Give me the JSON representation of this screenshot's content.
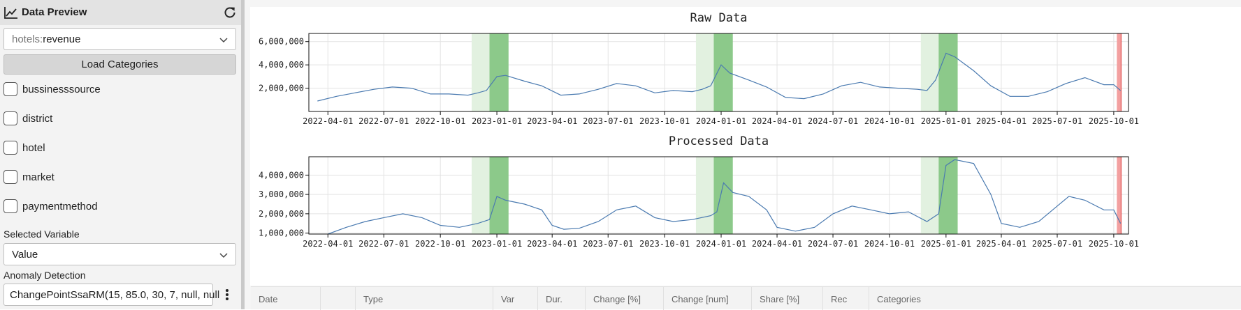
{
  "sidebar": {
    "header": {
      "title": "Data Preview",
      "icon": "line-chart-icon",
      "refresh_icon": "refresh-icon"
    },
    "source_select": {
      "prefix": "hotels:",
      "value": "revenue"
    },
    "load_button": "Load Categories",
    "categories": [
      {
        "label": "bussinesssource",
        "checked": false
      },
      {
        "label": "district",
        "checked": false
      },
      {
        "label": "hotel",
        "checked": false
      },
      {
        "label": "market",
        "checked": false
      },
      {
        "label": "paymentmethod",
        "checked": false
      }
    ],
    "selected_variable_label": "Selected Variable",
    "variable_select": {
      "value": "Value"
    },
    "anomaly_label": "Anomaly Detection",
    "anomaly_value": "ChangePointSsaRM(15, 85.0, 30, 7, null, null"
  },
  "table": {
    "columns": [
      "Date",
      "",
      "Type",
      "Var",
      "Dur.",
      "Change [%]",
      "Change [num]",
      "Share [%]",
      "Rec",
      "Categories"
    ]
  },
  "colors": {
    "line": "#4a7ab0",
    "highlight_light": "#e2f1e0",
    "highlight_dark": "#8cc98a",
    "anomaly_red": "#f3a0a0",
    "anomaly_red_line": "#e05050"
  },
  "chart_data": [
    {
      "type": "line",
      "title": "Raw Data",
      "xlabel": "",
      "ylabel": "",
      "x_ticks": [
        "2022-04-01",
        "2022-07-01",
        "2022-10-01",
        "2023-01-01",
        "2023-04-01",
        "2023-07-01",
        "2023-10-01",
        "2024-01-01",
        "2024-04-01",
        "2024-07-01",
        "2024-10-01",
        "2025-01-01",
        "2025-04-01",
        "2025-07-01",
        "2025-10-01"
      ],
      "y_ticks": [
        "2,000,000",
        "4,000,000",
        "6,000,000"
      ],
      "xlim": [
        "2022-03-01",
        "2025-10-25"
      ],
      "ylim": [
        0,
        6700000
      ],
      "grid": true,
      "series": [
        {
          "x": [
            "2022-03-15",
            "2022-04-15",
            "2022-05-15",
            "2022-06-15",
            "2022-07-15",
            "2022-08-15",
            "2022-09-15",
            "2022-10-15",
            "2022-11-15",
            "2022-12-01",
            "2022-12-15",
            "2023-01-01",
            "2023-01-15",
            "2023-02-15",
            "2023-03-15",
            "2023-04-15",
            "2023-05-15",
            "2023-06-15",
            "2023-07-15",
            "2023-08-15",
            "2023-09-15",
            "2023-10-15",
            "2023-11-15",
            "2023-12-01",
            "2023-12-15",
            "2024-01-01",
            "2024-01-15",
            "2024-02-15",
            "2024-03-15",
            "2024-04-15",
            "2024-05-15",
            "2024-06-15",
            "2024-07-15",
            "2024-08-15",
            "2024-09-15",
            "2024-10-15",
            "2024-11-15",
            "2024-12-01",
            "2024-12-15",
            "2025-01-01",
            "2025-01-15",
            "2025-02-15",
            "2025-03-15",
            "2025-04-15",
            "2025-05-15",
            "2025-06-15",
            "2025-07-15",
            "2025-08-15",
            "2025-09-15",
            "2025-10-01",
            "2025-10-12"
          ],
          "y": [
            900000,
            1300000,
            1600000,
            1900000,
            2100000,
            2000000,
            1500000,
            1500000,
            1400000,
            1600000,
            1800000,
            3000000,
            3100000,
            2600000,
            2200000,
            1400000,
            1500000,
            1900000,
            2400000,
            2200000,
            1600000,
            1800000,
            1700000,
            1900000,
            2200000,
            4000000,
            3300000,
            2700000,
            2100000,
            1200000,
            1100000,
            1500000,
            2200000,
            2500000,
            2100000,
            2000000,
            1900000,
            1800000,
            2700000,
            5000000,
            4700000,
            3500000,
            2200000,
            1300000,
            1300000,
            1700000,
            2400000,
            2900000,
            2300000,
            2300000,
            1800000
          ]
        }
      ]
    },
    {
      "type": "line",
      "title": "Processed Data",
      "xlabel": "",
      "ylabel": "",
      "x_ticks": [
        "2022-04-01",
        "2022-07-01",
        "2022-10-01",
        "2023-01-01",
        "2023-04-01",
        "2023-07-01",
        "2023-10-01",
        "2024-01-01",
        "2024-04-01",
        "2024-07-01",
        "2024-10-01",
        "2025-01-01",
        "2025-04-01",
        "2025-07-01",
        "2025-10-01"
      ],
      "y_ticks": [
        "1,000,000",
        "2,000,000",
        "3,000,000",
        "4,000,000"
      ],
      "xlim": [
        "2022-03-01",
        "2025-10-25"
      ],
      "ylim": [
        950000,
        4950000
      ],
      "grid": true,
      "series": [
        {
          "x": [
            "2022-04-01",
            "2022-05-01",
            "2022-06-01",
            "2022-07-01",
            "2022-08-01",
            "2022-09-01",
            "2022-10-01",
            "2022-11-01",
            "2022-12-01",
            "2022-12-20",
            "2023-01-01",
            "2023-01-15",
            "2023-02-15",
            "2023-03-15",
            "2023-04-01",
            "2023-04-20",
            "2023-05-15",
            "2023-06-15",
            "2023-07-15",
            "2023-08-15",
            "2023-09-15",
            "2023-10-15",
            "2023-11-15",
            "2023-12-15",
            "2023-12-25",
            "2024-01-05",
            "2024-01-20",
            "2024-02-15",
            "2024-03-15",
            "2024-04-01",
            "2024-05-01",
            "2024-06-01",
            "2024-07-01",
            "2024-08-01",
            "2024-09-01",
            "2024-10-01",
            "2024-11-01",
            "2024-12-01",
            "2024-12-20",
            "2025-01-01",
            "2025-01-15",
            "2025-02-15",
            "2025-03-15",
            "2025-04-01",
            "2025-05-01",
            "2025-06-01",
            "2025-07-01",
            "2025-07-20",
            "2025-08-15",
            "2025-09-15",
            "2025-10-01",
            "2025-10-12"
          ],
          "y": [
            950000,
            1300000,
            1600000,
            1800000,
            2000000,
            1800000,
            1400000,
            1300000,
            1500000,
            1700000,
            2900000,
            2700000,
            2500000,
            2200000,
            1400000,
            1200000,
            1250000,
            1600000,
            2200000,
            2400000,
            1800000,
            1600000,
            1700000,
            1900000,
            2100000,
            3600000,
            3100000,
            2900000,
            2200000,
            1300000,
            1100000,
            1300000,
            2000000,
            2400000,
            2200000,
            2000000,
            2100000,
            1600000,
            2000000,
            4500000,
            4800000,
            4600000,
            3000000,
            1500000,
            1300000,
            1600000,
            2400000,
            2900000,
            2700000,
            2200000,
            2200000,
            1500000
          ]
        }
      ]
    }
  ],
  "highlights": [
    {
      "light": [
        "2022-11-21",
        "2022-12-20"
      ],
      "dark": [
        "2022-12-20",
        "2023-01-20"
      ]
    },
    {
      "light": [
        "2023-11-21",
        "2023-12-20"
      ],
      "dark": [
        "2023-12-20",
        "2024-01-20"
      ]
    },
    {
      "light": [
        "2024-11-21",
        "2024-12-20"
      ],
      "dark": [
        "2024-12-20",
        "2025-01-20"
      ]
    }
  ],
  "anomaly": [
    "2025-10-06",
    "2025-10-13"
  ]
}
